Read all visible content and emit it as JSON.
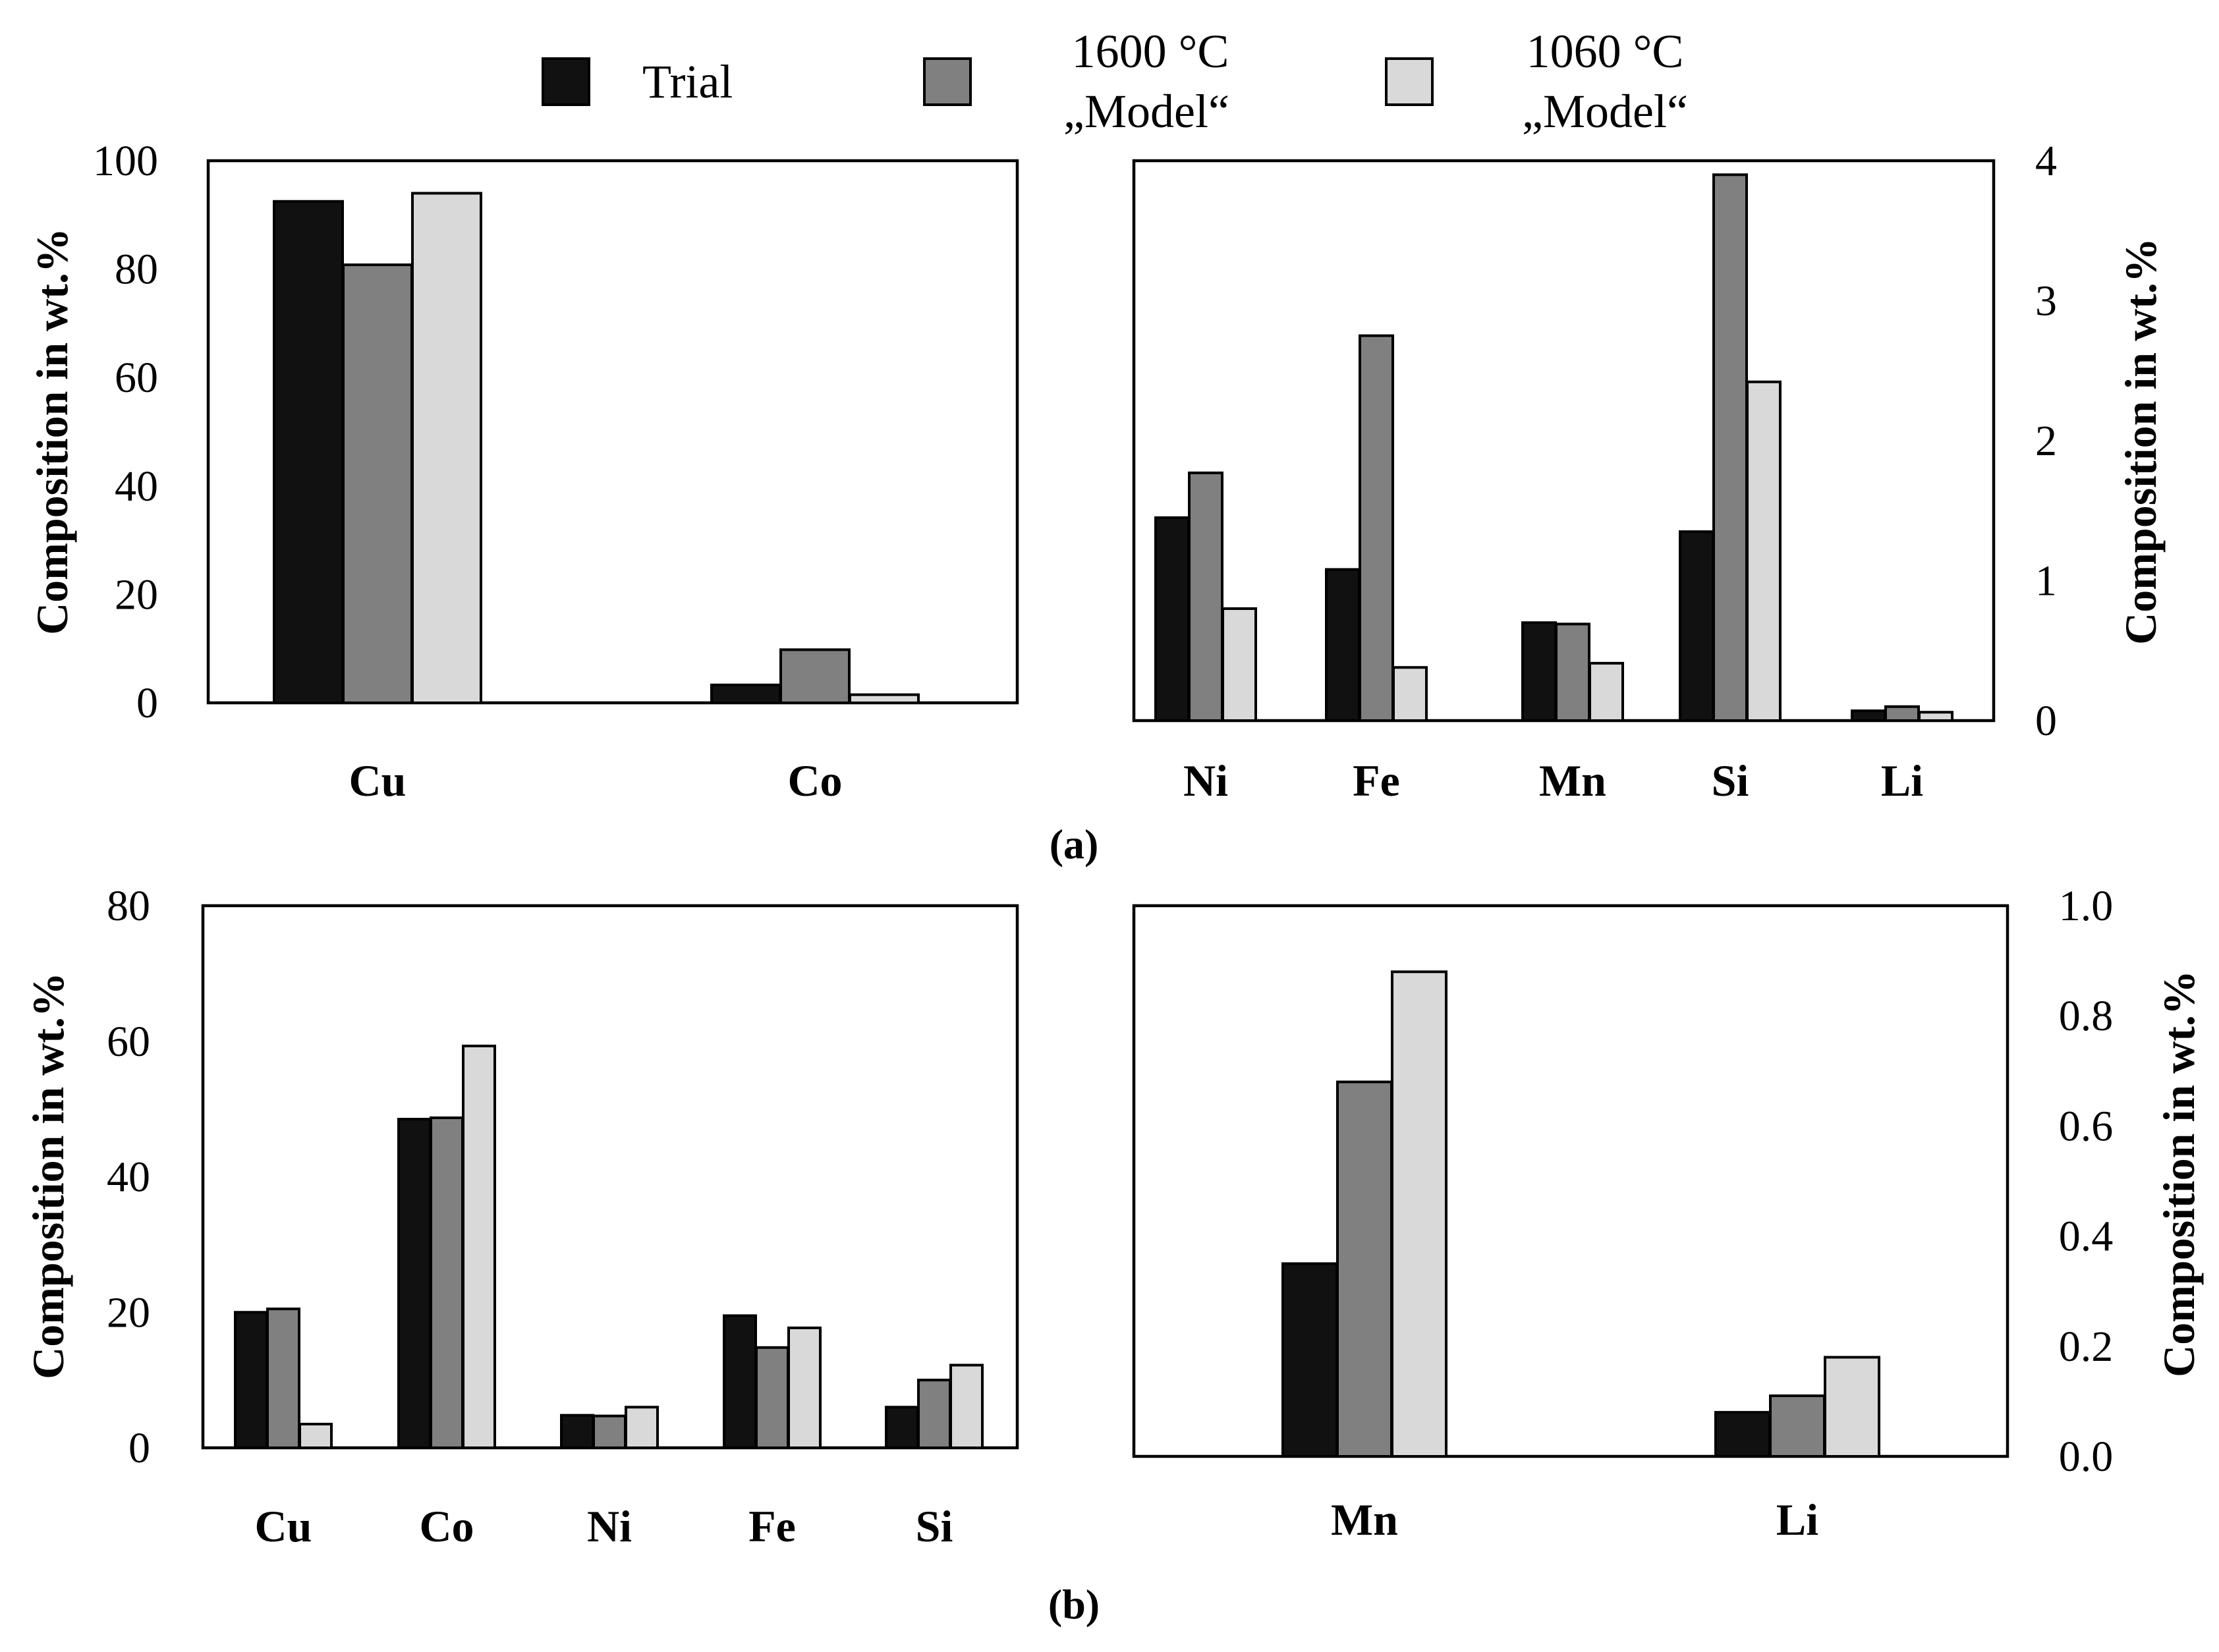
{
  "colors": {
    "trial": "#111111",
    "m1600": "#808080",
    "m1060": "#d9d9d9"
  },
  "legend": [
    {
      "key": "trial",
      "line1": "Trial",
      "line2": ""
    },
    {
      "key": "m1600",
      "line1": "1600 °C",
      "line2": "„Model“"
    },
    {
      "key": "m1060",
      "line1": "1060 °C",
      "line2": "„Model“"
    }
  ],
  "panel_labels": {
    "a": "(a)",
    "b": "(b)"
  },
  "chart_data": [
    {
      "id": "a-left",
      "type": "bar",
      "categories": [
        "Cu",
        "Co"
      ],
      "series": [
        {
          "name": "Trial",
          "key": "trial",
          "values": [
            92.5,
            3.3
          ]
        },
        {
          "name": "1600 °C „Model“",
          "key": "m1600",
          "values": [
            80.8,
            9.8
          ]
        },
        {
          "name": "1060 °C „Model“",
          "key": "m1060",
          "values": [
            94.0,
            1.5
          ]
        }
      ],
      "ylabel": "Composition in wt.%",
      "yaxis_side": "left",
      "ylim": [
        0,
        100
      ],
      "yticks": [
        "0",
        "20",
        "40",
        "60",
        "80",
        "100"
      ]
    },
    {
      "id": "a-right",
      "type": "bar",
      "categories": [
        "Ni",
        "Fe",
        "Mn",
        "Si",
        "Li"
      ],
      "series": [
        {
          "name": "Trial",
          "key": "trial",
          "values": [
            1.45,
            1.08,
            0.7,
            1.35,
            0.07
          ]
        },
        {
          "name": "1600 °C „Model“",
          "key": "m1600",
          "values": [
            1.77,
            2.75,
            0.69,
            3.9,
            0.1
          ]
        },
        {
          "name": "1060 °C „Model“",
          "key": "m1060",
          "values": [
            0.8,
            0.38,
            0.41,
            2.42,
            0.06
          ]
        }
      ],
      "ylabel": "Composition in wt.%",
      "yaxis_side": "right",
      "ylim": [
        0,
        4
      ],
      "yticks": [
        "0",
        "1",
        "2",
        "3",
        "4"
      ]
    },
    {
      "id": "b-left",
      "type": "bar",
      "categories": [
        "Cu",
        "Co",
        "Ni",
        "Fe",
        "Si"
      ],
      "series": [
        {
          "name": "Trial",
          "key": "trial",
          "values": [
            20.0,
            48.5,
            4.8,
            19.5,
            6.0
          ]
        },
        {
          "name": "1600 °C „Model“",
          "key": "m1600",
          "values": [
            20.5,
            48.7,
            4.7,
            14.8,
            10.0
          ]
        },
        {
          "name": "1060 °C „Model“",
          "key": "m1060",
          "values": [
            3.5,
            59.3,
            6.0,
            17.7,
            12.2
          ]
        }
      ],
      "ylabel": "Composition in wt.%",
      "yaxis_side": "left",
      "ylim": [
        0,
        80
      ],
      "yticks": [
        "0",
        "20",
        "40",
        "60",
        "80"
      ]
    },
    {
      "id": "b-right",
      "type": "bar",
      "categories": [
        "Mn",
        "Li"
      ],
      "series": [
        {
          "name": "Trial",
          "key": "trial",
          "values": [
            0.35,
            0.08
          ]
        },
        {
          "name": "1600 °C „Model“",
          "key": "m1600",
          "values": [
            0.68,
            0.11
          ]
        },
        {
          "name": "1060 °C „Model“",
          "key": "m1060",
          "values": [
            0.88,
            0.18
          ]
        }
      ],
      "ylabel": "Composition in wt.%",
      "yaxis_side": "right",
      "ylim": [
        0,
        1
      ],
      "yticks": [
        "0.0",
        "0.2",
        "0.4",
        "0.6",
        "0.8",
        "1.0"
      ]
    }
  ]
}
